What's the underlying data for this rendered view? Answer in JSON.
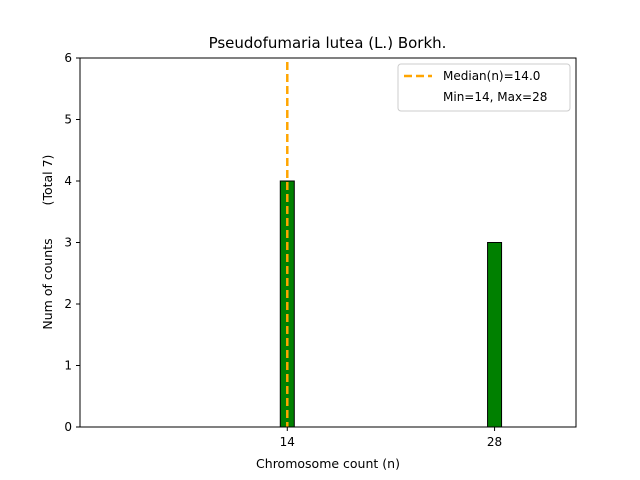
{
  "chart_data": {
    "type": "bar",
    "title": "Pseudofumaria lutea (L.) Borkh.",
    "xlabel": "Chromosome count (n)",
    "ylabel": "Num of counts",
    "ylabel_secondary": "(Total 7)",
    "x": [
      14,
      28
    ],
    "values": [
      4,
      3
    ],
    "xlim": [
      0,
      33.5
    ],
    "ylim": [
      0,
      6
    ],
    "yticks": [
      0,
      1,
      2,
      3,
      4,
      5,
      6
    ],
    "xticks": [
      14,
      28
    ],
    "bar_color": "#008000",
    "bar_edge_color": "#000000",
    "median": 14.0,
    "median_color": "#FFA500",
    "legend": {
      "position": "top-right",
      "median_label": "Median(n)=14.0",
      "range_label": "Min=14, Max=28"
    },
    "grid": false
  }
}
